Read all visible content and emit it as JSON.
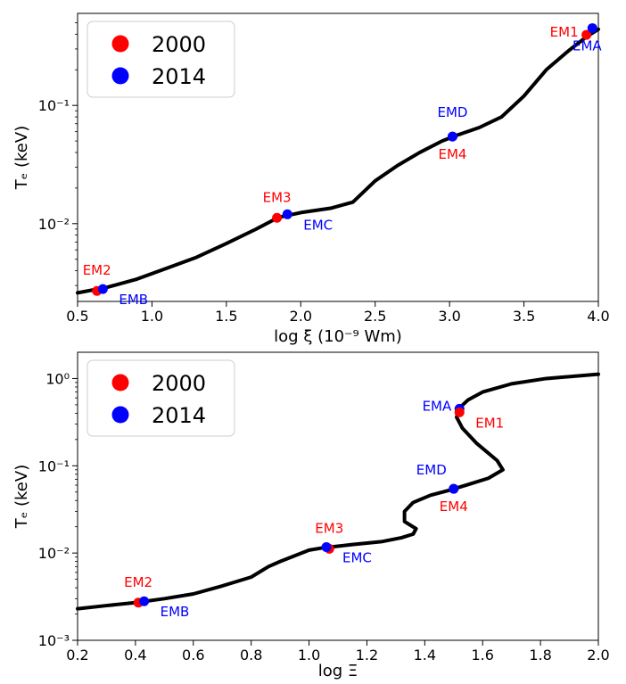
{
  "colors": {
    "y2000": "#ff0000",
    "y2014": "#0000ff",
    "curve": "#000000"
  },
  "chart_data": [
    {
      "type": "line",
      "xlabel": "log ξ (10⁻⁹ Wm)",
      "ylabel": "Tₑ (keV)",
      "xlim": [
        0.5,
        4.0
      ],
      "ylim": [
        0.0022,
        0.6
      ],
      "yscale": "log",
      "grid": false,
      "legend": "top-left",
      "xticks": [
        {
          "v": 0.5,
          "label": "0.5"
        },
        {
          "v": 1.0,
          "label": "1.0"
        },
        {
          "v": 1.5,
          "label": "1.5"
        },
        {
          "v": 2.0,
          "label": "2.0"
        },
        {
          "v": 2.5,
          "label": "2.5"
        },
        {
          "v": 3.0,
          "label": "3.0"
        },
        {
          "v": 3.5,
          "label": "3.5"
        },
        {
          "v": 4.0,
          "label": "4.0"
        }
      ],
      "yticks": [
        {
          "v": 0.01,
          "label": "10⁻²"
        },
        {
          "v": 0.1,
          "label": "10⁻¹"
        }
      ],
      "legend_entries": [
        {
          "label": "2000",
          "color": "#ff0000"
        },
        {
          "label": "2014",
          "color": "#0000ff"
        }
      ],
      "curve": [
        [
          0.5,
          0.0026
        ],
        [
          0.7,
          0.0029
        ],
        [
          0.9,
          0.0034
        ],
        [
          1.1,
          0.0042
        ],
        [
          1.3,
          0.0052
        ],
        [
          1.5,
          0.0068
        ],
        [
          1.7,
          0.009
        ],
        [
          1.85,
          0.0113
        ],
        [
          2.0,
          0.0124
        ],
        [
          2.2,
          0.0135
        ],
        [
          2.35,
          0.0152
        ],
        [
          2.5,
          0.023
        ],
        [
          2.65,
          0.031
        ],
        [
          2.8,
          0.04
        ],
        [
          2.95,
          0.05
        ],
        [
          3.05,
          0.056
        ],
        [
          3.2,
          0.065
        ],
        [
          3.35,
          0.08
        ],
        [
          3.5,
          0.12
        ],
        [
          3.65,
          0.2
        ],
        [
          3.8,
          0.29
        ],
        [
          3.92,
          0.38
        ],
        [
          4.0,
          0.44
        ]
      ],
      "points": [
        {
          "name": "EM2",
          "year": "2000",
          "x": 0.63,
          "y": 0.0027,
          "label_pos": "above"
        },
        {
          "name": "EMB",
          "year": "2014",
          "x": 0.67,
          "y": 0.0028,
          "label_pos": "right-below"
        },
        {
          "name": "EM3",
          "year": "2000",
          "x": 1.84,
          "y": 0.0112,
          "label_pos": "above"
        },
        {
          "name": "EMC",
          "year": "2014",
          "x": 1.91,
          "y": 0.012,
          "label_pos": "right-below"
        },
        {
          "name": "EM4",
          "year": "2000",
          "x": 3.02,
          "y": 0.0545,
          "label_pos": "below"
        },
        {
          "name": "EMD",
          "year": "2014",
          "x": 3.02,
          "y": 0.0545,
          "label_pos": "above-far"
        },
        {
          "name": "EM1",
          "year": "2000",
          "x": 3.92,
          "y": 0.395,
          "label_pos": "left"
        },
        {
          "name": "EMA",
          "year": "2014",
          "x": 3.96,
          "y": 0.45,
          "label_pos": "below-left"
        }
      ]
    },
    {
      "type": "line",
      "xlabel": "log Ξ",
      "ylabel": "Tₑ (keV)",
      "xlim": [
        0.2,
        2.0
      ],
      "ylim": [
        0.001,
        2.0
      ],
      "yscale": "log",
      "grid": false,
      "legend": "top-left",
      "xticks": [
        {
          "v": 0.2,
          "label": "0.2"
        },
        {
          "v": 0.4,
          "label": "0.4"
        },
        {
          "v": 0.6,
          "label": "0.6"
        },
        {
          "v": 0.8,
          "label": "0.8"
        },
        {
          "v": 1.0,
          "label": "1.0"
        },
        {
          "v": 1.2,
          "label": "1.2"
        },
        {
          "v": 1.4,
          "label": "1.4"
        },
        {
          "v": 1.6,
          "label": "1.6"
        },
        {
          "v": 1.8,
          "label": "1.8"
        },
        {
          "v": 2.0,
          "label": "2.0"
        }
      ],
      "yticks": [
        {
          "v": 0.001,
          "label": "10⁻³"
        },
        {
          "v": 0.01,
          "label": "10⁻²"
        },
        {
          "v": 0.1,
          "label": "10⁻¹"
        },
        {
          "v": 1.0,
          "label": "10⁰"
        }
      ],
      "legend_entries": [
        {
          "label": "2000",
          "color": "#ff0000"
        },
        {
          "label": "2014",
          "color": "#0000ff"
        }
      ],
      "curve": [
        [
          0.2,
          0.0023
        ],
        [
          0.3,
          0.0025
        ],
        [
          0.4,
          0.0027
        ],
        [
          0.5,
          0.003
        ],
        [
          0.6,
          0.0034
        ],
        [
          0.7,
          0.0042
        ],
        [
          0.8,
          0.0053
        ],
        [
          0.86,
          0.007
        ],
        [
          0.9,
          0.008
        ],
        [
          1.0,
          0.0108
        ],
        [
          1.05,
          0.0115
        ],
        [
          1.15,
          0.0125
        ],
        [
          1.25,
          0.0135
        ],
        [
          1.32,
          0.015
        ],
        [
          1.36,
          0.0165
        ],
        [
          1.37,
          0.019
        ],
        [
          1.33,
          0.023
        ],
        [
          1.33,
          0.03
        ],
        [
          1.36,
          0.038
        ],
        [
          1.42,
          0.046
        ],
        [
          1.49,
          0.053
        ],
        [
          1.55,
          0.061
        ],
        [
          1.62,
          0.072
        ],
        [
          1.67,
          0.09
        ],
        [
          1.65,
          0.115
        ],
        [
          1.58,
          0.18
        ],
        [
          1.53,
          0.27
        ],
        [
          1.51,
          0.36
        ],
        [
          1.52,
          0.46
        ],
        [
          1.55,
          0.57
        ],
        [
          1.6,
          0.7
        ],
        [
          1.7,
          0.87
        ],
        [
          1.82,
          1.0
        ],
        [
          2.0,
          1.12
        ]
      ],
      "points": [
        {
          "name": "EM2",
          "year": "2000",
          "x": 0.41,
          "y": 0.0027,
          "label_pos": "above"
        },
        {
          "name": "EMB",
          "year": "2014",
          "x": 0.43,
          "y": 0.0028,
          "label_pos": "right-below"
        },
        {
          "name": "EM3",
          "year": "2000",
          "x": 1.07,
          "y": 0.0112,
          "label_pos": "above"
        },
        {
          "name": "EMC",
          "year": "2014",
          "x": 1.06,
          "y": 0.0117,
          "label_pos": "right-below"
        },
        {
          "name": "EM4",
          "year": "2000",
          "x": 1.5,
          "y": 0.0545,
          "label_pos": "below"
        },
        {
          "name": "EMD",
          "year": "2014",
          "x": 1.5,
          "y": 0.0545,
          "label_pos": "above-left"
        },
        {
          "name": "EMA",
          "year": "2014",
          "x": 1.52,
          "y": 0.45,
          "label_pos": "left"
        },
        {
          "name": "EM1",
          "year": "2000",
          "x": 1.52,
          "y": 0.41,
          "label_pos": "right-below"
        }
      ]
    }
  ]
}
